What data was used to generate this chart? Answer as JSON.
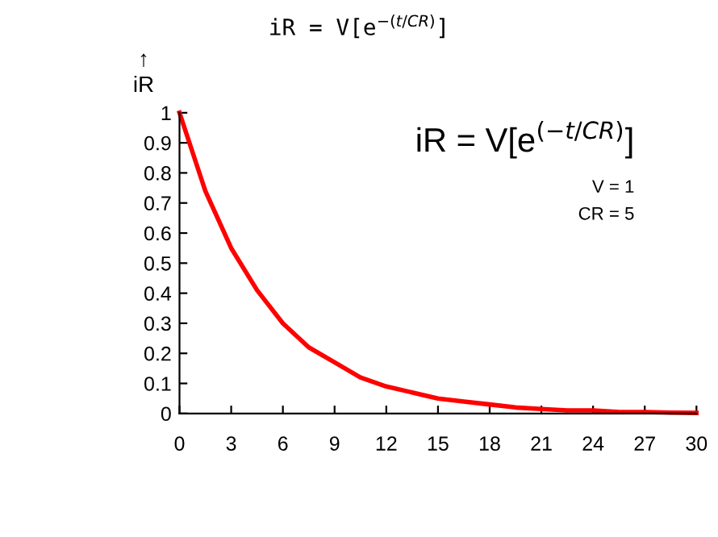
{
  "chart_data": {
    "type": "line",
    "title": "iR = V[e$^{−(t/CR)}$]",
    "ylabel": "↑\niR",
    "annotations": [
      "iR = V[e$^{(−t/CR)}$]",
      "V = 1",
      "CR = 5"
    ],
    "x": [
      0,
      1.5,
      3,
      4.5,
      6,
      7.5,
      9,
      10.5,
      12,
      13.5,
      15,
      16.5,
      18,
      19.5,
      21,
      22.5,
      24,
      25.5,
      27,
      28.5,
      30
    ],
    "series": [
      {
        "color": "#ff0000",
        "values": [
          1,
          0.74,
          0.55,
          0.41,
          0.3,
          0.22,
          0.17,
          0.12,
          0.09,
          0.07,
          0.05,
          0.04,
          0.03,
          0.02,
          0.015,
          0.01,
          0.01,
          0.005,
          0.005,
          0.003,
          0.002
        ]
      }
    ],
    "xlim": [
      0,
      30
    ],
    "xticks": [
      0,
      3,
      6,
      9,
      12,
      15,
      18,
      21,
      24,
      27,
      30
    ],
    "ylim": [
      0,
      1
    ],
    "yticks": [
      0,
      0.1,
      0.2,
      0.3,
      0.4,
      0.5,
      0.6,
      0.7,
      0.8,
      0.9,
      1
    ],
    "grid": false,
    "legend": false,
    "marker": "none",
    "line_style": "solid"
  }
}
